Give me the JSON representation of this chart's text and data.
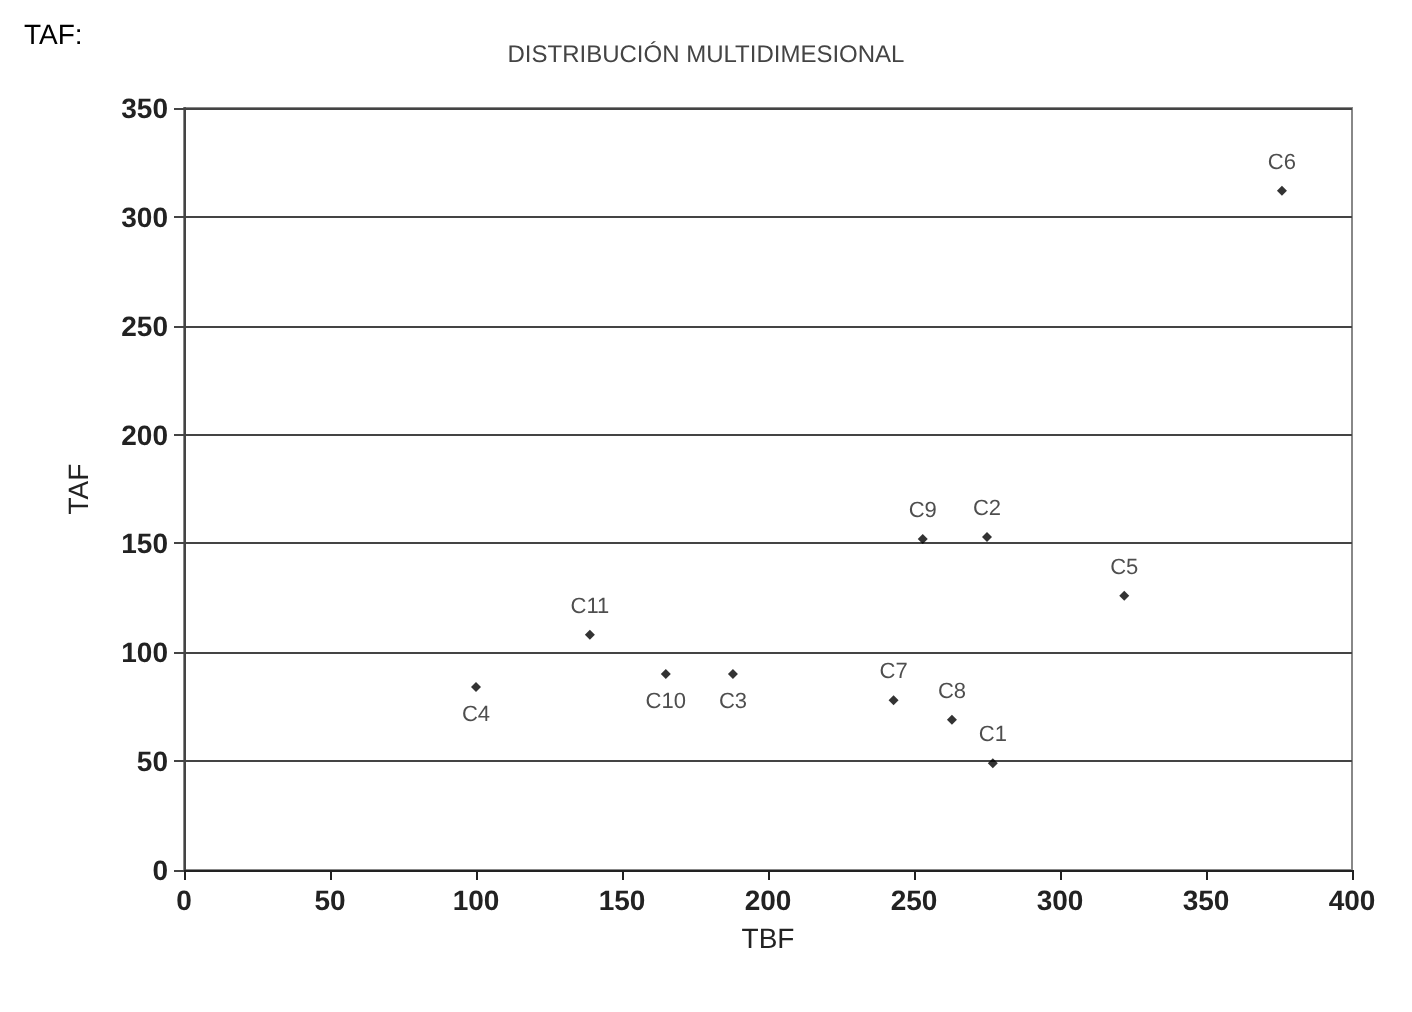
{
  "chart_data": {
    "type": "scatter",
    "title": "DISTRIBUCIÓN MULTIDIMESIONAL",
    "xlabel": "TBF",
    "ylabel": "TAF",
    "annotations": [
      "TAF:"
    ],
    "x": [
      100,
      139,
      165,
      188,
      243,
      253,
      263,
      275,
      277,
      322,
      376
    ],
    "series": [
      {
        "color": "#000000",
        "values": [
          84,
          108,
          90,
          90,
          78,
          152,
          69,
          153,
          49,
          126,
          312
        ],
        "value_labels": [
          "C4",
          "C11",
          "C10",
          "C3",
          "C7",
          "C9",
          "C8",
          "C2",
          "C1",
          "C5",
          "C6"
        ]
      }
    ],
    "xlim": [
      0,
      400
    ],
    "xticks": [
      0,
      50,
      100,
      150,
      200,
      250,
      300,
      350,
      400
    ],
    "ylim": [
      0,
      350
    ],
    "yticks": [
      0,
      50,
      100,
      150,
      200,
      250,
      300,
      350
    ],
    "grid": "y",
    "marker": "diamond"
  }
}
